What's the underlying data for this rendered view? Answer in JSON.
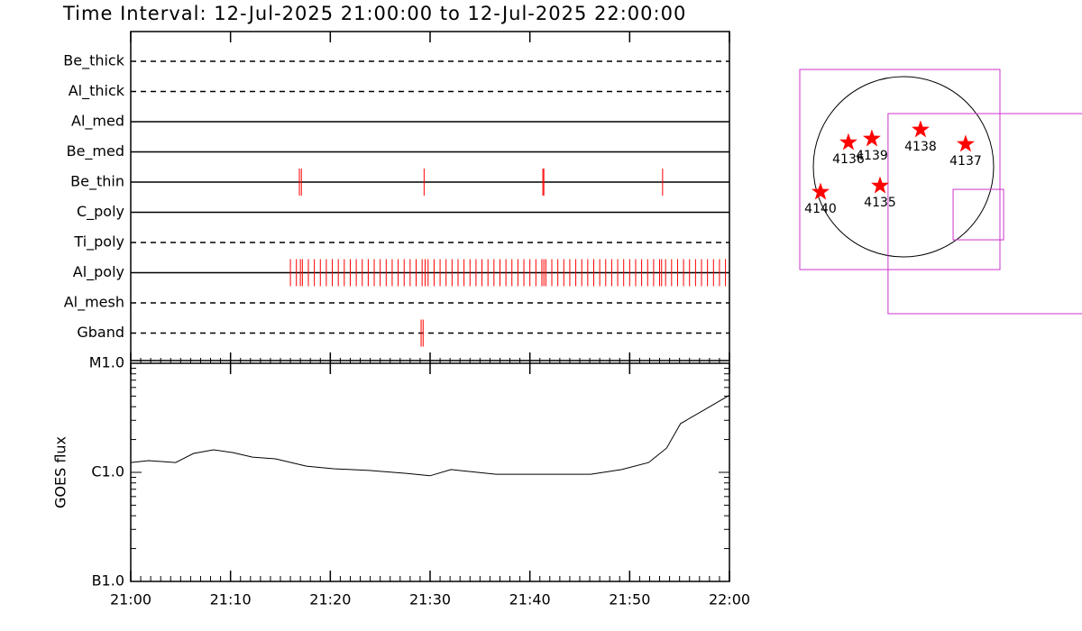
{
  "title": "Time Interval: 12-Jul-2025 21:00:00 to 12-Jul-2025 22:00:00",
  "chart_data": [
    {
      "type": "timeline",
      "categories": [
        "Be_thick",
        "Al_thick",
        "Al_med",
        "Be_med",
        "Be_thin",
        "C_poly",
        "Ti_poly",
        "Al_poly",
        "Al_mesh",
        "Gband"
      ],
      "line_styles": [
        "dashed",
        "dashed",
        "solid",
        "solid",
        "solid",
        "solid",
        "dashed",
        "solid",
        "dashed",
        "dashed"
      ],
      "color": "#ff0000",
      "xlim": [
        0,
        60
      ],
      "observations": [
        [],
        [],
        [],
        [],
        [
          16.9,
          17.1,
          29.4,
          41.3,
          41.4,
          53.3
        ],
        [],
        [],
        [
          16.0,
          16.6,
          17.0,
          17.2,
          17.8,
          18.4,
          19.0,
          19.6,
          20.2,
          20.8,
          21.4,
          22.0,
          22.6,
          23.2,
          23.8,
          24.4,
          25.0,
          25.6,
          26.2,
          26.8,
          27.4,
          28.0,
          28.6,
          29.2,
          29.5,
          29.8,
          30.4,
          31.0,
          31.6,
          32.2,
          32.8,
          33.4,
          34.0,
          34.6,
          35.2,
          35.8,
          36.4,
          37.0,
          37.6,
          38.2,
          38.8,
          39.4,
          40.0,
          40.6,
          41.2,
          41.4,
          41.6,
          42.2,
          42.8,
          43.4,
          44.0,
          44.6,
          45.2,
          45.8,
          46.4,
          47.0,
          47.6,
          48.2,
          48.8,
          49.4,
          50.0,
          50.6,
          51.2,
          51.8,
          52.4,
          53.0,
          53.2,
          53.6,
          54.2,
          54.8,
          55.4,
          56.0,
          56.6,
          57.2,
          57.8,
          58.4,
          59.0,
          59.6
        ],
        [],
        [
          29.1,
          29.3
        ]
      ]
    },
    {
      "type": "line",
      "ylabel": "GOES flux",
      "log_scale": true,
      "color": "#000000",
      "x": [
        0,
        1.8,
        4.5,
        6.3,
        8.3,
        10.2,
        12.2,
        14.5,
        17.6,
        20.3,
        23.9,
        27.6,
        30.0,
        32.1,
        36.6,
        41.1,
        46.1,
        49.2,
        51.9,
        53.7,
        55.1,
        57.4,
        60
      ],
      "values": [
        1.23e-06,
        1.28e-06,
        1.23e-06,
        1.49e-06,
        1.61e-06,
        1.52e-06,
        1.38e-06,
        1.33e-06,
        1.14e-06,
        1.08e-06,
        1.04e-06,
        9.8e-07,
        9.3e-07,
        1.06e-06,
        9.6e-07,
        9.6e-07,
        9.6e-07,
        1.06e-06,
        1.23e-06,
        1.67e-06,
        2.8e-06,
        3.7e-06,
        5.1e-06
      ],
      "xlim": [
        0,
        60
      ],
      "xticks": [
        {
          "value": 0,
          "label": "21:00"
        },
        {
          "value": 10,
          "label": "21:10"
        },
        {
          "value": 20,
          "label": "21:20"
        },
        {
          "value": 30,
          "label": "21:30"
        },
        {
          "value": 40,
          "label": "21:40"
        },
        {
          "value": 50,
          "label": "21:50"
        },
        {
          "value": 60,
          "label": "22:00"
        }
      ],
      "ylim": [
        1e-07,
        1e-05
      ],
      "yticks": [
        {
          "value": 1e-07,
          "label": "B1.0"
        },
        {
          "value": 1e-06,
          "label": "C1.0"
        },
        {
          "value": 1e-05,
          "label": "M1.0"
        }
      ]
    },
    {
      "type": "map",
      "rsun": 950,
      "marker_color": "#ff0000",
      "box_color": "#cc33cc",
      "regions": [
        {
          "label": "4136",
          "x": -580,
          "y": 256
        },
        {
          "label": "4139",
          "x": -333,
          "y": 295
        },
        {
          "label": "4138",
          "x": 180,
          "y": 390
        },
        {
          "label": "4137",
          "x": 655,
          "y": 238
        },
        {
          "label": "4140",
          "x": -874,
          "y": -266
        },
        {
          "label": "4135",
          "x": -247,
          "y": -200
        }
      ],
      "fields": [
        {
          "x": -38,
          "y": -29,
          "size": 2109
        },
        {
          "x": 892,
          "y": -494,
          "size": 2109
        },
        {
          "x": 789,
          "y": -504,
          "size": 532
        }
      ]
    }
  ]
}
